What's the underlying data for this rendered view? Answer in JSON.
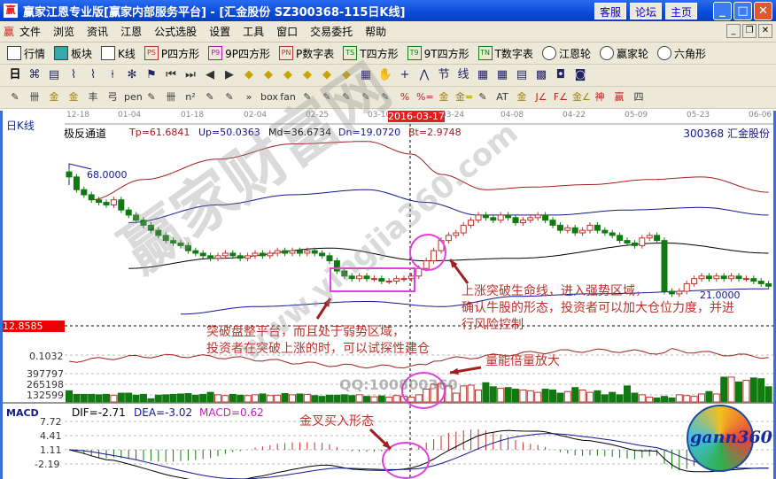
{
  "window": {
    "title": "赢家江恩专业版[赢家内部服务平台] - [汇金股份   SZ300368-115日K线]",
    "buttons": [
      "客服",
      "论坛",
      "主页"
    ]
  },
  "menu": [
    "文件",
    "浏览",
    "资讯",
    "江恩",
    "公式选股",
    "设置",
    "工具",
    "窗口",
    "交易委托",
    "帮助"
  ],
  "toolbar1": [
    {
      "icon": "calendar-icon",
      "label": "行情"
    },
    {
      "icon": "blocks-icon",
      "label": "板块"
    },
    {
      "icon": "candles-icon",
      "label": "K线"
    },
    {
      "icon": "PS",
      "label": "P四方形"
    },
    {
      "icon": "P9",
      "label": "9P四方形"
    },
    {
      "icon": "PN",
      "label": "P数字表"
    },
    {
      "icon": "TS",
      "label": "T四方形"
    },
    {
      "icon": "T9",
      "label": "9T四方形"
    },
    {
      "icon": "TN",
      "label": "T数字表"
    },
    {
      "icon": "gann-wheel-icon",
      "label": "江恩轮"
    },
    {
      "icon": "big-wheel-icon",
      "label": "赢家轮"
    },
    {
      "icon": "hexagon-icon",
      "label": "六角形"
    }
  ],
  "toolbar2": {
    "period": "日",
    "icons": [
      "chart-icon",
      "doc-icon",
      "wave3-icon",
      "wave9-icon",
      "candle-icon",
      "pattern-icon",
      "flag-icon",
      "first-icon",
      "last-icon",
      "prev-icon",
      "next-icon",
      "left-icon",
      "up-icon",
      "lr-icon",
      "shrink-icon",
      "expand-icon",
      "ud-icon",
      "pan-icon",
      "hand-icon",
      "cross-icon",
      "line-icon",
      "节",
      "线",
      "calendar-icon",
      "calc-icon",
      "notes-icon",
      "save-icon",
      "network-icon",
      "connect-icon"
    ]
  },
  "toolbar3": {
    "icons": [
      "pencil",
      "卌",
      "金",
      "金",
      "丰",
      "弓",
      "pen",
      "circle",
      "卌",
      "n²",
      "triangle",
      "target",
      "»",
      "box",
      "fan",
      "grid",
      "grid2",
      "grid3",
      "lines",
      "parallel",
      "%",
      "%=",
      "金",
      "金=",
      "arrow",
      "AT",
      "金",
      "J∠",
      "F∠",
      "金∠",
      "神",
      "赢",
      "四"
    ]
  },
  "chart": {
    "period_label": "日K线",
    "dates": [
      "12-18",
      "01-04",
      "01-18",
      "02-04",
      "02-25",
      "03-10",
      "2016-03-17",
      "03-24",
      "04-08",
      "04-22",
      "05-09",
      "05-23",
      "06-06"
    ],
    "indicator": {
      "name": "极反通道",
      "Tp": "Tp=61.6841",
      "Up": "Up=50.0363",
      "Md": "Md=36.6734",
      "Dn": "Dn=19.0720",
      "Bt": "Bt=2.9748"
    },
    "stock": "300368  汇金股份",
    "high_mark": "68.0000",
    "low_mark": "21.0000",
    "cursor_price": "12.8585",
    "sub_value": "0.1032",
    "volume_ticks": [
      "397797",
      "265198",
      "132599"
    ],
    "macd": {
      "name": "MACD",
      "DIF": "DIF=-2.71",
      "DEA": "DEA=-3.02",
      "MACD": "MACD=0.62",
      "ticks": [
        "7.72",
        "4.41",
        "1.11",
        "-2.19"
      ]
    },
    "annotations": {
      "a1": [
        "突破盘整平台，而且处于弱势区域，",
        "投资者在突破上涨的时，可以试探性建仓"
      ],
      "a2": [
        "上涨突破生命线，进入强势区域，",
        "确认牛股的形态，投资者可以加大仓位力度，并进",
        "行风险控制"
      ],
      "a3": "量能倍量放大",
      "a4": "金叉买入形态"
    },
    "watermark": {
      "text": "赢家财富网",
      "url": "www.yingjia360.com",
      "qq": "QQ:100800360",
      "logo": "gann360"
    },
    "colors": {
      "up": "#c0302a",
      "down": "#107a10",
      "highlight": "#e040e0",
      "Tp": "#a02020",
      "Up": "#101890",
      "Md": "#000000",
      "Dn": "#101890"
    }
  },
  "chart_data": {
    "type": "candlestick",
    "closes": [
      67,
      62,
      60,
      58,
      57,
      56,
      58,
      54,
      52,
      50,
      48,
      46,
      44,
      42,
      41,
      40,
      38,
      37,
      36,
      35,
      36,
      37,
      36,
      35,
      36,
      37,
      36,
      37,
      38,
      37,
      38,
      37,
      38,
      37,
      36,
      34,
      30,
      28,
      27,
      28,
      27,
      27,
      26,
      26,
      27,
      27,
      28,
      31,
      34,
      38,
      42,
      44,
      45,
      48,
      50,
      52,
      51,
      50,
      52,
      51,
      49,
      50,
      51,
      52,
      50,
      48,
      46,
      47,
      45,
      46,
      48,
      46,
      45,
      44,
      42,
      41,
      40,
      43,
      44,
      42,
      22,
      21,
      22,
      25,
      27,
      28,
      27,
      28,
      27,
      28,
      27,
      27,
      26,
      25,
      24
    ],
    "channel": {
      "Tp": [
        [
          3,
          58
        ],
        [
          10,
          66
        ],
        [
          20,
          74
        ],
        [
          30,
          80
        ],
        [
          40,
          81
        ],
        [
          46,
          76
        ],
        [
          50,
          68
        ],
        [
          56,
          62
        ],
        [
          62,
          63
        ],
        [
          70,
          64
        ],
        [
          78,
          66
        ],
        [
          85,
          67
        ],
        [
          94,
          61
        ]
      ],
      "Up": [
        [
          8,
          49
        ],
        [
          20,
          56
        ],
        [
          30,
          60
        ],
        [
          40,
          62
        ],
        [
          48,
          57
        ],
        [
          55,
          52
        ],
        [
          65,
          52
        ],
        [
          75,
          54
        ],
        [
          85,
          55
        ],
        [
          94,
          52
        ]
      ],
      "Md": [
        [
          8,
          31
        ],
        [
          20,
          35
        ],
        [
          35,
          39
        ],
        [
          48,
          34
        ],
        [
          60,
          35
        ],
        [
          80,
          41
        ],
        [
          94,
          37
        ]
      ],
      "Dn": [
        [
          15,
          13
        ],
        [
          25,
          16
        ],
        [
          40,
          18
        ],
        [
          50,
          16
        ],
        [
          60,
          20
        ],
        [
          70,
          21
        ],
        [
          94,
          23
        ]
      ]
    },
    "volume": [
      140000,
      95000,
      95000,
      95000,
      90000,
      95000,
      85000,
      110000,
      110000,
      85000,
      95000,
      40000,
      85000,
      90000,
      95000,
      100000,
      105000,
      85000,
      95000,
      120000,
      90000,
      80000,
      95000,
      85000,
      80000,
      90000,
      100000,
      80000,
      85000,
      105000,
      90000,
      100000,
      95000,
      80000,
      70000,
      85000,
      85000,
      90000,
      80000,
      90000,
      70000,
      65000,
      75000,
      60000,
      80000,
      70000,
      60000,
      90000,
      160000,
      220000,
      230000,
      200000,
      110000,
      200000,
      210000,
      150000,
      240000,
      190000,
      170000,
      180000,
      160000,
      150000,
      140000,
      120000,
      160000,
      150000,
      110000,
      130000,
      180000,
      150000,
      120000,
      140000,
      90000,
      120000,
      90000,
      200000,
      110000,
      90000,
      60000,
      50000,
      70000,
      50000,
      90000,
      80000,
      70000,
      100000,
      130000,
      100000,
      310000,
      310000,
      250000,
      270000,
      300000,
      290000,
      190000
    ]
  }
}
